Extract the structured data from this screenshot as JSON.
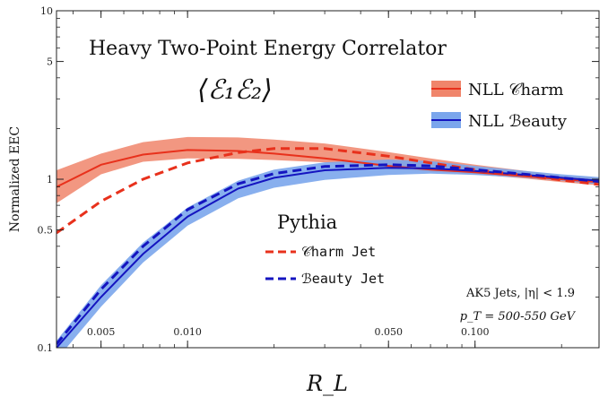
{
  "chart_data": {
    "type": "line",
    "title": "Heavy Two-Point Energy Correlator",
    "subtitle": "⟨ℰ₁ℰ₂⟩",
    "xlabel": "R_L",
    "ylabel": "Normalized EEC",
    "xscale": "log",
    "yscale": "log",
    "xlim": [
      0.0035,
      0.27
    ],
    "ylim": [
      0.1,
      10
    ],
    "xticks": [
      {
        "value": 0.005,
        "label": "0.005"
      },
      {
        "value": 0.01,
        "label": "0.010"
      },
      {
        "value": 0.05,
        "label": "0.050"
      },
      {
        "value": 0.1,
        "label": "0.100"
      }
    ],
    "yticks": [
      {
        "value": 0.1,
        "label": "0.1"
      },
      {
        "value": 0.5,
        "label": "0.5"
      },
      {
        "value": 1,
        "label": "1"
      },
      {
        "value": 5,
        "label": "5"
      },
      {
        "value": 10,
        "label": "10"
      }
    ],
    "x": [
      0.0035,
      0.005,
      0.007,
      0.01,
      0.015,
      0.02,
      0.03,
      0.05,
      0.07,
      0.1,
      0.15,
      0.2,
      0.27
    ],
    "series": [
      {
        "name": "NLL 𝒞harm",
        "style": "band",
        "color": "#e8311c",
        "fill": "#f0856b",
        "values": [
          0.9,
          1.22,
          1.4,
          1.49,
          1.47,
          1.42,
          1.33,
          1.2,
          1.14,
          1.1,
          1.04,
          1.0,
          0.96
        ],
        "lower": [
          0.72,
          1.07,
          1.27,
          1.33,
          1.32,
          1.3,
          1.26,
          1.15,
          1.11,
          1.07,
          1.01,
          0.96,
          0.92
        ],
        "upper": [
          1.13,
          1.42,
          1.66,
          1.78,
          1.77,
          1.72,
          1.63,
          1.45,
          1.33,
          1.22,
          1.12,
          1.05,
          1.02
        ]
      },
      {
        "name": "NLL ℬeauty",
        "style": "band",
        "color": "#1414c0",
        "fill": "#7ba6ec",
        "values": [
          0.095,
          0.2,
          0.36,
          0.6,
          0.88,
          1.02,
          1.13,
          1.17,
          1.16,
          1.12,
          1.06,
          1.02,
          0.98
        ],
        "lower": [
          0.085,
          0.175,
          0.32,
          0.53,
          0.77,
          0.89,
          0.99,
          1.06,
          1.08,
          1.06,
          1.02,
          0.98,
          0.93
        ],
        "upper": [
          0.11,
          0.235,
          0.42,
          0.68,
          0.98,
          1.14,
          1.26,
          1.31,
          1.28,
          1.2,
          1.12,
          1.07,
          1.03
        ]
      },
      {
        "name": "𝒞harm Jet",
        "style": "dashed",
        "color": "#e8311c",
        "values": [
          0.48,
          0.74,
          1.0,
          1.25,
          1.44,
          1.52,
          1.52,
          1.37,
          1.25,
          1.14,
          1.05,
          0.99,
          0.93
        ]
      },
      {
        "name": "ℬeauty Jet",
        "style": "dashed",
        "color": "#1414c0",
        "values": [
          0.105,
          0.222,
          0.4,
          0.66,
          0.94,
          1.08,
          1.19,
          1.22,
          1.2,
          1.14,
          1.07,
          1.02,
          0.97
        ]
      }
    ],
    "legend": {
      "position": "top-right",
      "items": [
        "NLL 𝒞harm",
        "NLL ℬeauty"
      ]
    },
    "pythia_legend": {
      "title": "Pythia",
      "items": [
        "𝒞harm Jet",
        "ℬeauty Jet"
      ]
    },
    "annotations": [
      "AK5 Jets, |η| < 1.9",
      "p_T = 500-550 GeV"
    ],
    "grid": false
  }
}
